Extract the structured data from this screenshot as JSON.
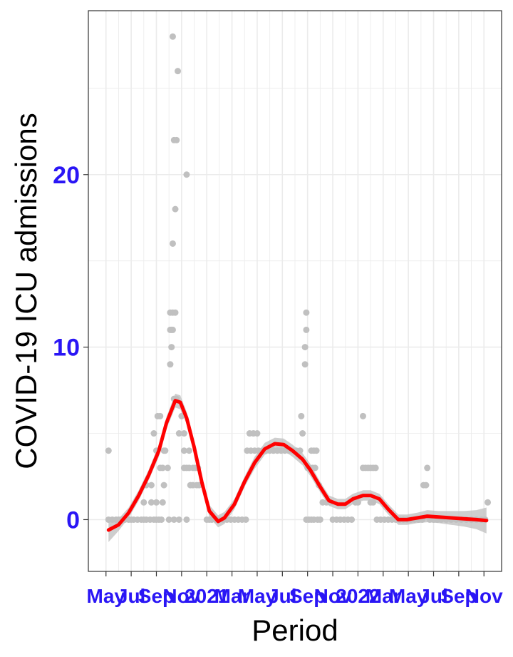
{
  "colors": {
    "tick_label": "#2a16f5",
    "points": "#c0c0c0",
    "smooth_line": "#ff0000",
    "ribbon": "#bdbdbd",
    "grid": "#ebebeb",
    "panel_border": "#333333"
  },
  "chart_data": {
    "type": "scatter",
    "xlabel": "Period",
    "ylabel": "COVID-19 ICU admissions",
    "ylim": [
      -3,
      29.5
    ],
    "xlim": [
      -0.7,
      15.7
    ],
    "y_ticks": [
      0,
      10,
      20
    ],
    "x_ticks": [
      "May",
      "Jul",
      "Sep",
      "Nov",
      "2021",
      "Mar",
      "May",
      "Jul",
      "Sep",
      "Nov",
      "2022",
      "Mar",
      "May",
      "Jul",
      "Sep",
      "Nov"
    ],
    "grid": true,
    "legend": "none",
    "series": [
      {
        "points": [
          [
            0.1,
            4
          ],
          [
            0.1,
            0
          ],
          [
            0.25,
            0
          ],
          [
            0.4,
            0
          ],
          [
            0.5,
            0
          ],
          [
            0.6,
            0
          ],
          [
            0.75,
            0
          ],
          [
            0.9,
            0
          ],
          [
            1.0,
            0
          ],
          [
            1.1,
            0
          ],
          [
            1.25,
            0
          ],
          [
            1.4,
            0
          ],
          [
            1.5,
            0
          ],
          [
            1.6,
            0
          ],
          [
            1.75,
            0
          ],
          [
            1.9,
            0
          ],
          [
            1.5,
            1
          ],
          [
            1.6,
            2
          ],
          [
            1.8,
            2
          ],
          [
            1.8,
            1
          ],
          [
            2.0,
            1
          ],
          [
            2.0,
            0
          ],
          [
            2.1,
            0
          ],
          [
            2.2,
            0
          ],
          [
            1.9,
            5
          ],
          [
            2.05,
            6
          ],
          [
            2.15,
            6
          ],
          [
            2.0,
            4
          ],
          [
            2.15,
            3
          ],
          [
            2.25,
            3
          ],
          [
            2.3,
            4
          ],
          [
            2.35,
            4
          ],
          [
            2.3,
            2
          ],
          [
            2.25,
            1
          ],
          [
            2.45,
            3
          ],
          [
            2.5,
            0
          ],
          [
            2.7,
            0
          ],
          [
            2.55,
            9
          ],
          [
            2.55,
            11
          ],
          [
            2.6,
            11
          ],
          [
            2.65,
            11
          ],
          [
            2.55,
            12
          ],
          [
            2.65,
            12
          ],
          [
            2.75,
            12
          ],
          [
            2.6,
            10
          ],
          [
            2.65,
            16
          ],
          [
            2.7,
            22
          ],
          [
            2.8,
            22
          ],
          [
            2.75,
            18
          ],
          [
            2.65,
            28
          ],
          [
            2.85,
            26
          ],
          [
            3.2,
            20
          ],
          [
            2.7,
            7
          ],
          [
            2.8,
            7
          ],
          [
            3.0,
            6
          ],
          [
            2.9,
            5
          ],
          [
            3.1,
            5
          ],
          [
            3.1,
            4
          ],
          [
            3.3,
            4
          ],
          [
            3.1,
            3
          ],
          [
            3.2,
            3
          ],
          [
            3.3,
            3
          ],
          [
            3.45,
            3
          ],
          [
            3.55,
            3
          ],
          [
            3.65,
            3
          ],
          [
            3.35,
            2
          ],
          [
            3.45,
            2
          ],
          [
            3.6,
            2
          ],
          [
            3.7,
            2
          ],
          [
            2.9,
            0
          ],
          [
            3.2,
            0
          ],
          [
            4.0,
            0
          ],
          [
            4.1,
            0
          ],
          [
            4.2,
            0
          ],
          [
            4.35,
            0
          ],
          [
            4.5,
            0
          ],
          [
            4.65,
            0
          ],
          [
            4.8,
            0
          ],
          [
            4.95,
            0
          ],
          [
            5.1,
            0
          ],
          [
            5.25,
            0
          ],
          [
            5.4,
            0
          ],
          [
            5.55,
            0
          ],
          [
            5.7,
            5
          ],
          [
            5.85,
            5
          ],
          [
            6.0,
            5
          ],
          [
            5.6,
            4
          ],
          [
            5.75,
            4
          ],
          [
            5.9,
            4
          ],
          [
            6.05,
            4
          ],
          [
            6.2,
            4
          ],
          [
            6.35,
            4
          ],
          [
            6.5,
            4
          ],
          [
            6.65,
            4
          ],
          [
            6.8,
            4
          ],
          [
            6.95,
            4
          ],
          [
            7.1,
            4
          ],
          [
            7.25,
            4
          ],
          [
            7.4,
            4
          ],
          [
            7.55,
            4
          ],
          [
            7.7,
            4
          ],
          [
            7.75,
            6
          ],
          [
            7.8,
            5
          ],
          [
            7.95,
            12
          ],
          [
            7.95,
            11
          ],
          [
            7.9,
            10
          ],
          [
            7.9,
            9
          ],
          [
            7.95,
            0
          ],
          [
            8.05,
            0
          ],
          [
            8.15,
            0
          ],
          [
            8.25,
            0
          ],
          [
            8.4,
            0
          ],
          [
            8.0,
            3
          ],
          [
            8.1,
            3
          ],
          [
            8.2,
            3
          ],
          [
            8.3,
            3
          ],
          [
            8.15,
            4
          ],
          [
            8.25,
            4
          ],
          [
            8.35,
            4
          ],
          [
            8.45,
            2
          ],
          [
            8.5,
            0
          ],
          [
            8.6,
            1
          ],
          [
            8.75,
            1
          ],
          [
            8.9,
            1
          ],
          [
            9.0,
            0
          ],
          [
            9.15,
            0
          ],
          [
            9.3,
            0
          ],
          [
            9.45,
            0
          ],
          [
            9.6,
            0
          ],
          [
            9.75,
            0
          ],
          [
            9.9,
            1
          ],
          [
            10.0,
            1
          ],
          [
            10.2,
            3
          ],
          [
            10.3,
            3
          ],
          [
            10.4,
            3
          ],
          [
            10.5,
            3
          ],
          [
            10.6,
            3
          ],
          [
            10.7,
            3
          ],
          [
            10.2,
            6
          ],
          [
            10.5,
            1
          ],
          [
            10.6,
            1
          ],
          [
            10.75,
            0
          ],
          [
            10.9,
            0
          ],
          [
            11.05,
            0
          ],
          [
            11.2,
            0
          ],
          [
            11.35,
            0
          ],
          [
            11.5,
            0
          ],
          [
            11.65,
            0
          ],
          [
            11.8,
            0
          ],
          [
            11.95,
            0
          ],
          [
            12.1,
            0
          ],
          [
            12.25,
            0
          ],
          [
            12.4,
            0
          ],
          [
            12.55,
            0
          ],
          [
            12.6,
            2
          ],
          [
            12.7,
            2
          ],
          [
            12.75,
            3
          ],
          [
            12.85,
            0
          ],
          [
            13.0,
            0
          ],
          [
            13.15,
            0
          ],
          [
            13.3,
            0
          ],
          [
            13.5,
            0
          ],
          [
            13.7,
            0
          ],
          [
            13.9,
            0
          ],
          [
            14.1,
            0
          ],
          [
            14.3,
            0
          ],
          [
            14.5,
            0
          ],
          [
            14.7,
            0
          ],
          [
            14.9,
            0
          ],
          [
            15.05,
            0
          ],
          [
            15.15,
            1
          ]
        ]
      },
      {
        "type": "smooth",
        "points": [
          [
            0.1,
            -0.6
          ],
          [
            0.5,
            -0.3
          ],
          [
            0.9,
            0.4
          ],
          [
            1.3,
            1.4
          ],
          [
            1.7,
            2.6
          ],
          [
            2.1,
            4.0
          ],
          [
            2.4,
            5.6
          ],
          [
            2.75,
            6.9
          ],
          [
            2.95,
            6.8
          ],
          [
            3.2,
            5.9
          ],
          [
            3.5,
            4.2
          ],
          [
            3.8,
            2.2
          ],
          [
            4.1,
            0.5
          ],
          [
            4.45,
            -0.1
          ],
          [
            4.7,
            0.1
          ],
          [
            5.1,
            0.9
          ],
          [
            5.5,
            2.2
          ],
          [
            5.9,
            3.3
          ],
          [
            6.3,
            4.1
          ],
          [
            6.7,
            4.4
          ],
          [
            7.05,
            4.35
          ],
          [
            7.4,
            4.0
          ],
          [
            7.8,
            3.5
          ],
          [
            8.1,
            2.9
          ],
          [
            8.5,
            1.9
          ],
          [
            8.85,
            1.1
          ],
          [
            9.2,
            0.9
          ],
          [
            9.5,
            0.9
          ],
          [
            9.8,
            1.2
          ],
          [
            10.2,
            1.4
          ],
          [
            10.5,
            1.4
          ],
          [
            10.85,
            1.2
          ],
          [
            11.2,
            0.6
          ],
          [
            11.6,
            0.0
          ],
          [
            11.95,
            0.0
          ],
          [
            12.35,
            0.1
          ],
          [
            12.75,
            0.2
          ],
          [
            13.2,
            0.15
          ],
          [
            13.7,
            0.1
          ],
          [
            14.2,
            0.05
          ],
          [
            14.7,
            0.0
          ],
          [
            15.1,
            -0.05
          ]
        ],
        "band": [
          0.7,
          0.35,
          0.3,
          0.3,
          0.3,
          0.35,
          0.35,
          0.4,
          0.4,
          0.35,
          0.35,
          0.3,
          0.35,
          0.35,
          0.35,
          0.3,
          0.3,
          0.35,
          0.35,
          0.35,
          0.35,
          0.35,
          0.35,
          0.35,
          0.3,
          0.3,
          0.3,
          0.3,
          0.3,
          0.3,
          0.3,
          0.3,
          0.3,
          0.3,
          0.3,
          0.3,
          0.35,
          0.35,
          0.4,
          0.45,
          0.55,
          0.75
        ]
      }
    ]
  }
}
